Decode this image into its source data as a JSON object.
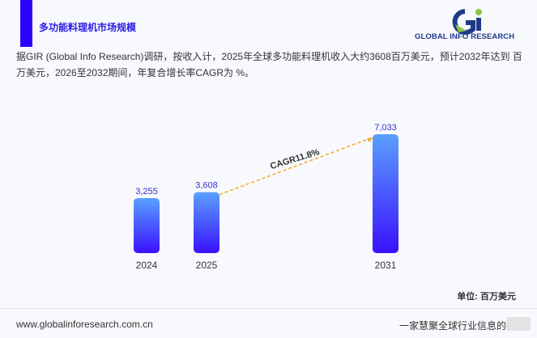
{
  "header": {
    "title": "多功能料理机市场规模",
    "logo_text": "GLOBAL INFO RESEARCH"
  },
  "description": "据GIR (Global Info Research)调研，按收入计，2025年全球多功能料理机收入大约3608百万美元，预计2032年达到 百万美元，2026至2032期间，年复合增长率CAGR为 %。",
  "colors": {
    "accent": "#2a00ff",
    "bar_top": "#5aa0ff",
    "bar_bottom": "#3a10ff",
    "cagr_line": "#f5a623"
  },
  "chart_data": {
    "type": "bar",
    "categories": [
      "2024",
      "2025",
      "2031"
    ],
    "values": [
      3255,
      3608,
      7033
    ],
    "value_labels": [
      "3,255",
      "3,608",
      "7,033"
    ],
    "annotation": "CAGR11.8%",
    "unit": "单位: 百万美元",
    "grid": false
  },
  "footer": {
    "website": "www.globalinforesearch.com.cn",
    "slogan": "一家慧聚全球行业信息的"
  }
}
